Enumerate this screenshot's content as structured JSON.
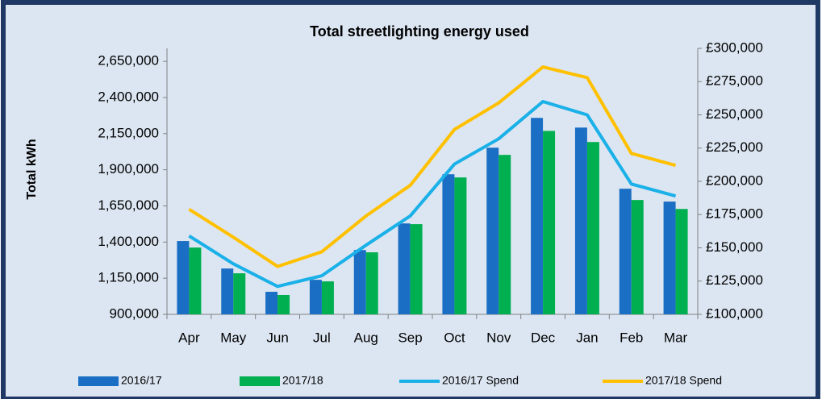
{
  "chart_data": {
    "type": "bar_line",
    "title": "Total streetlighting energy used",
    "y_label": "Total kWh",
    "categories": [
      "Apr",
      "May",
      "Jun",
      "Jul",
      "Aug",
      "Sep",
      "Oct",
      "Nov",
      "Dec",
      "Jan",
      "Feb",
      "Mar"
    ],
    "series": [
      {
        "name": "2016/17",
        "type": "bar",
        "color": "#1a6fc4",
        "values": [
          1407000,
          1217000,
          1056000,
          1139000,
          1345000,
          1529000,
          1869000,
          2053000,
          2259000,
          2192000,
          1769000,
          1680000
        ]
      },
      {
        "name": "2017/18",
        "type": "bar",
        "color": "#00b050",
        "values": [
          1362000,
          1184000,
          1034000,
          1128000,
          1329000,
          1524000,
          1847000,
          2003000,
          2169000,
          2092000,
          1691000,
          1629000
        ]
      },
      {
        "name": "2016/17 Spend",
        "type": "line",
        "axis": "y2",
        "color": "#1ab0e8",
        "values": [
          159000,
          138000,
          121000,
          129000,
          152000,
          174000,
          213000,
          232000,
          260000,
          250000,
          198000,
          189000
        ]
      },
      {
        "name": "2017/18 Spend",
        "type": "line",
        "axis": "y2",
        "color": "#ffc000",
        "values": [
          179000,
          158000,
          136000,
          147000,
          174000,
          197000,
          239000,
          259000,
          286000,
          278000,
          221000,
          212000
        ]
      }
    ],
    "ylim": [
      900000,
      2740000
    ],
    "yticks": [
      {
        "value": 900000,
        "label": "900,000"
      },
      {
        "value": 1150000,
        "label": "1,150,000"
      },
      {
        "value": 1400000,
        "label": "1,400,000"
      },
      {
        "value": 1650000,
        "label": "1,650,000"
      },
      {
        "value": 1900000,
        "label": "1,900,000"
      },
      {
        "value": 2150000,
        "label": "2,150,000"
      },
      {
        "value": 2400000,
        "label": "2,400,000"
      },
      {
        "value": 2650000,
        "label": "2,650,000"
      }
    ],
    "y2lim": [
      100000,
      300000
    ],
    "y2ticks": [
      {
        "value": 100000,
        "label": "£100,000"
      },
      {
        "value": 125000,
        "label": "£125,000"
      },
      {
        "value": 150000,
        "label": "£150,000"
      },
      {
        "value": 175000,
        "label": "£175,000"
      },
      {
        "value": 200000,
        "label": "£200,000"
      },
      {
        "value": 225000,
        "label": "£225,000"
      },
      {
        "value": 250000,
        "label": "£250,000"
      },
      {
        "value": 275000,
        "label": "£275,000"
      },
      {
        "value": 300000,
        "label": "£300,000"
      }
    ],
    "legend": "bottom"
  }
}
